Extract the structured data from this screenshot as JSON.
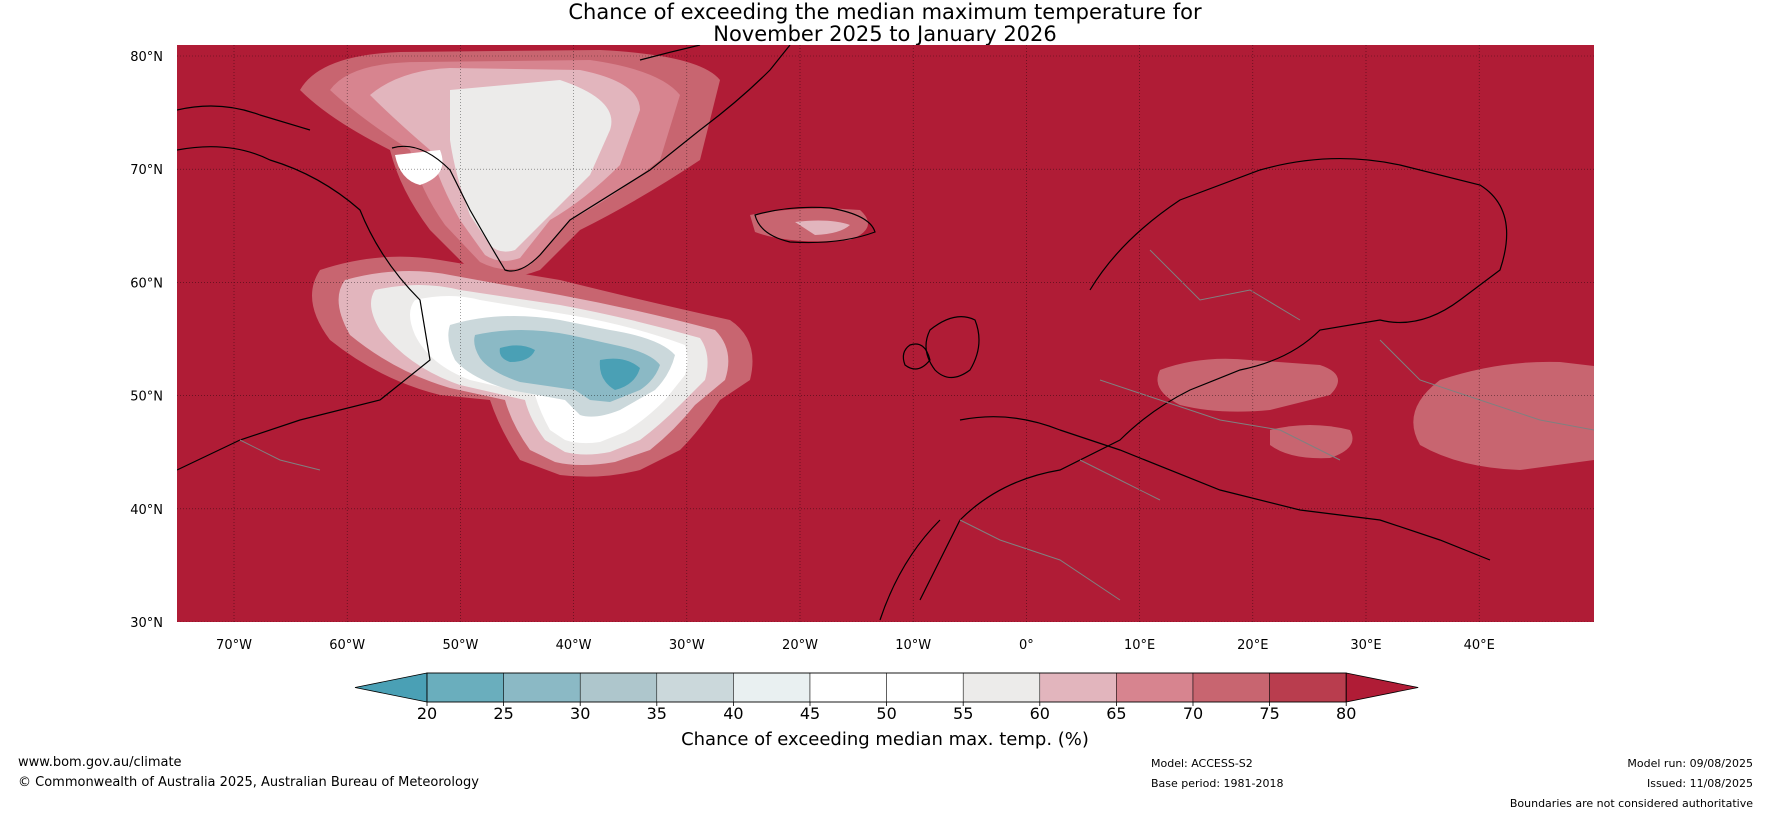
{
  "title": {
    "line1": "Chance of exceeding the median maximum temperature for",
    "line2": "November 2025 to January 2026"
  },
  "map": {
    "lat_ticks": [
      "80°N",
      "70°N",
      "60°N",
      "50°N",
      "40°N",
      "30°N"
    ],
    "lon_ticks": [
      "70°W",
      "60°W",
      "50°W",
      "40°W",
      "30°W",
      "20°W",
      "10°W",
      "0°",
      "10°E",
      "20°E",
      "30°E",
      "40°E"
    ],
    "colors": {
      "background": "#b01c36",
      "coast": "#000000",
      "border": "#808080"
    }
  },
  "colorbar": {
    "ticks": [
      "20",
      "25",
      "30",
      "35",
      "40",
      "45",
      "50",
      "55",
      "60",
      "65",
      "70",
      "75",
      "80"
    ],
    "colors": [
      "#4aa0b5",
      "#6aaebd",
      "#8bb9c5",
      "#aec6cc",
      "#cbd8db",
      "#e9f0f1",
      "#ffffff",
      "#ffffff",
      "#ecebea",
      "#e2b5bd",
      "#d7848f",
      "#c86570",
      "#b93d4e",
      "#b01c36"
    ],
    "label": "Chance of exceeding median max. temp. (%)"
  },
  "footer": {
    "website": "www.bom.gov.au/climate",
    "copyright": "© Commonwealth of Australia 2025, Australian Bureau of Meteorology",
    "model": "Model: ACCESS-S2",
    "base_period": "Base period: 1981-2018",
    "model_run": "Model run: 09/08/2025",
    "issued": "Issued: 11/08/2025",
    "disclaimer": "Boundaries are not considered authoritative"
  }
}
